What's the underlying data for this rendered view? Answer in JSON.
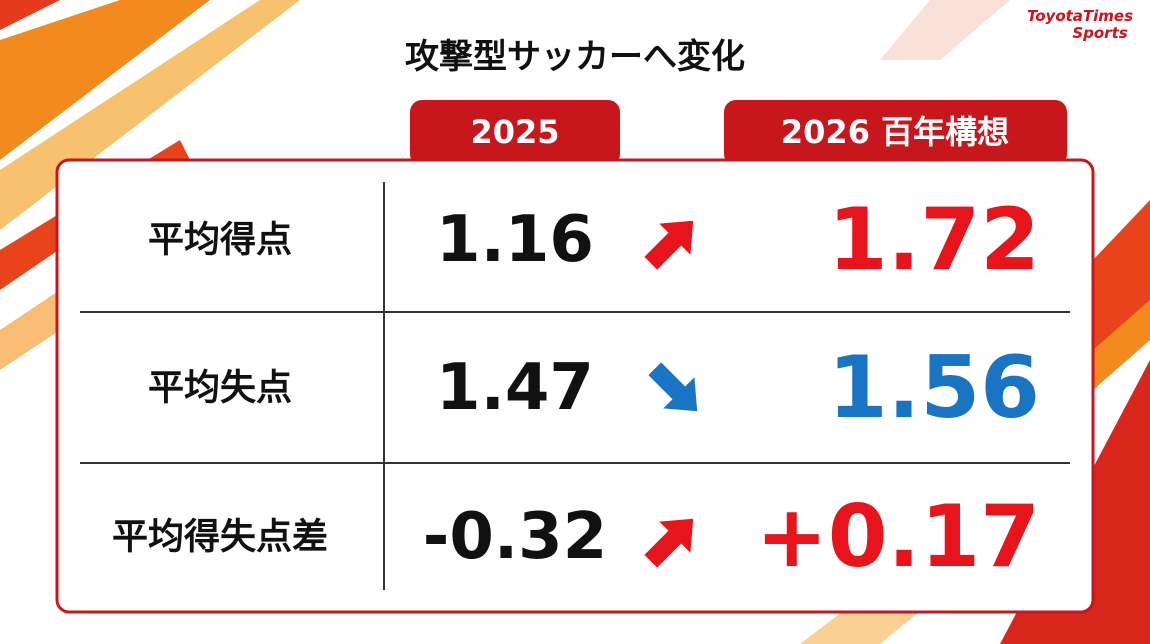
{
  "header": {
    "title": "攻撃型サッカーへ変化",
    "logo_top": "ToyotaTimes",
    "logo_bottom": "Sports"
  },
  "table": {
    "columns": [
      "2025",
      "2026 百年構想"
    ],
    "rows": [
      [
        "平均得点",
        "1.16",
        "1.72"
      ],
      [
        "平均失点",
        "1.47",
        "1.56"
      ],
      [
        "平均得失点差",
        "-0.32",
        "+0.17"
      ]
    ]
  }
}
